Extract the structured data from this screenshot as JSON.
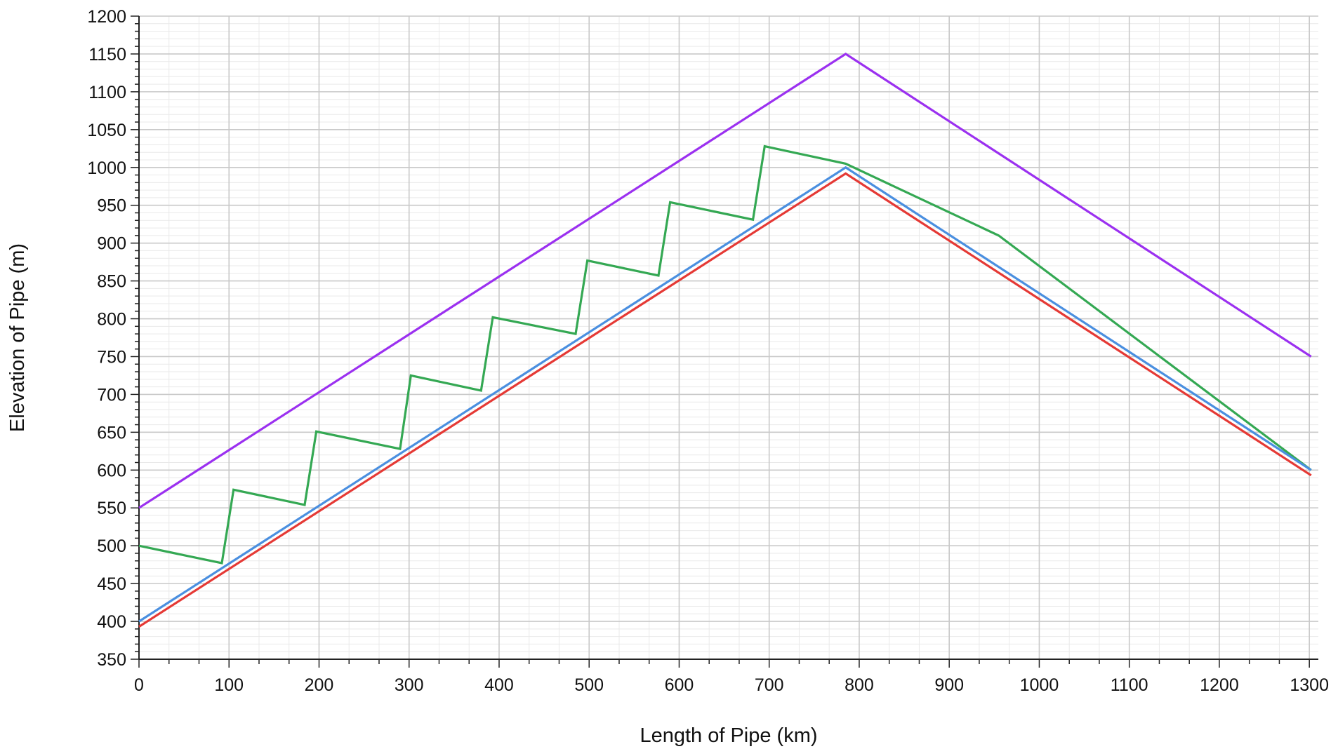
{
  "chart_data": {
    "type": "line",
    "title": "",
    "xlabel": "Length of Pipe (km)",
    "ylabel": "Elevation of Pipe (m)",
    "xlim": [
      0,
      1310
    ],
    "ylim": [
      350,
      1200
    ],
    "x_ticks": [
      0,
      100,
      200,
      300,
      400,
      500,
      600,
      700,
      800,
      900,
      1000,
      1100,
      1200,
      1300
    ],
    "y_ticks": [
      350,
      400,
      450,
      500,
      550,
      600,
      650,
      700,
      750,
      800,
      850,
      900,
      950,
      1000,
      1050,
      1100,
      1150,
      1200
    ],
    "grid": true,
    "legend": "none",
    "series": [
      {
        "color": "#9b30f0",
        "points": [
          [
            0,
            550
          ],
          [
            785,
            1150
          ],
          [
            1302,
            750
          ]
        ]
      },
      {
        "color": "#34a853",
        "points": [
          [
            0,
            500
          ],
          [
            92,
            477
          ],
          [
            105,
            574
          ],
          [
            184,
            554
          ],
          [
            197,
            651
          ],
          [
            290,
            628
          ],
          [
            302,
            725
          ],
          [
            380,
            705
          ],
          [
            393,
            802
          ],
          [
            485,
            780
          ],
          [
            498,
            877
          ],
          [
            577,
            857
          ],
          [
            590,
            954
          ],
          [
            682,
            931
          ],
          [
            695,
            1028
          ],
          [
            785,
            1005
          ],
          [
            955,
            910
          ],
          [
            1302,
            600
          ]
        ]
      },
      {
        "color": "#4a8fe0",
        "points": [
          [
            0,
            400
          ],
          [
            785,
            1000
          ],
          [
            1302,
            600
          ]
        ]
      },
      {
        "color": "#e53935",
        "points": [
          [
            0,
            393
          ],
          [
            785,
            992
          ],
          [
            1302,
            593
          ]
        ]
      }
    ]
  }
}
